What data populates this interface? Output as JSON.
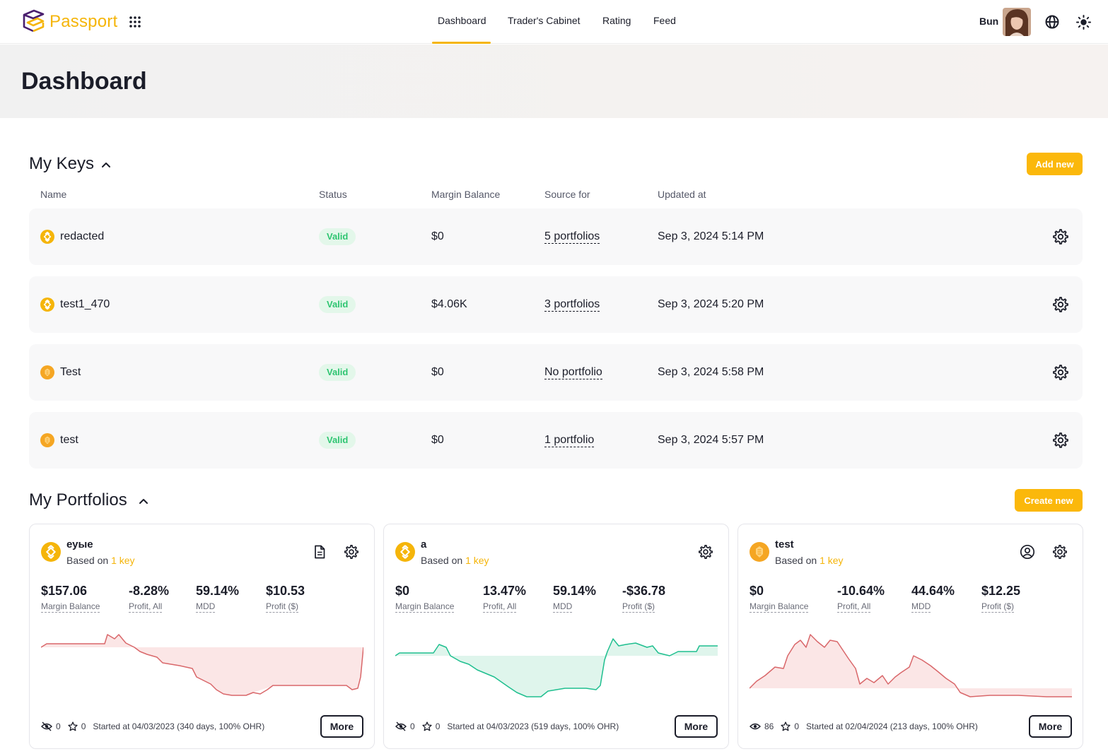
{
  "header": {
    "brand": "Passport",
    "nav": [
      {
        "label": "Dashboard",
        "active": true
      },
      {
        "label": "Trader's Cabinet",
        "active": false
      },
      {
        "label": "Rating",
        "active": false
      },
      {
        "label": "Feed",
        "active": false
      }
    ],
    "user_name": "Bun",
    "icons": [
      "apps-grid-icon",
      "globe-icon",
      "sun-icon"
    ]
  },
  "page": {
    "title": "Dashboard"
  },
  "colors": {
    "accent": "#fbb80b",
    "valid_text": "#2ec571",
    "valid_bg": "#e3f7ea",
    "loss": "#d9676a",
    "gain": "#1fbf8f"
  },
  "keys": {
    "title": "My Keys",
    "add_button": "Add new",
    "columns": [
      "Name",
      "Status",
      "Margin Balance",
      "Source for",
      "Updated at"
    ],
    "rows": [
      {
        "exchange_icon": "binance-icon",
        "name": "redacted",
        "status": "Valid",
        "margin": "$0",
        "source": "5 portfolios",
        "updated": "Sep 3, 2024 5:14 PM"
      },
      {
        "exchange_icon": "binance-icon",
        "name": "test1_470",
        "status": "Valid",
        "margin": "$4.06K",
        "source": "3 portfolios",
        "updated": "Sep 3, 2024 5:20 PM"
      },
      {
        "exchange_icon": "bybit-icon",
        "name": "Test",
        "status": "Valid",
        "margin": "$0",
        "source": "No portfolio",
        "updated": "Sep 3, 2024 5:58 PM"
      },
      {
        "exchange_icon": "bybit-icon",
        "name": "test",
        "status": "Valid",
        "margin": "$0",
        "source": "1 portfolio",
        "updated": "Sep 3, 2024 5:57 PM"
      }
    ]
  },
  "portfolios": {
    "title": "My Portfolios",
    "create_button": "Create new",
    "cards": [
      {
        "name": "еуые",
        "based_prefix": "Based on",
        "based_link": "1 key",
        "stats": [
          {
            "value": "$157.06",
            "label": "Margin Balance"
          },
          {
            "value": "-8.28%",
            "label": "Profit, All"
          },
          {
            "value": "59.14%",
            "label": "MDD"
          },
          {
            "value": "$10.53",
            "label": "Profit ($)"
          }
        ],
        "views": "0",
        "stars": "0",
        "started": "Started at 04/03/2023 (340 days, 100% OHR)",
        "more": "More"
      },
      {
        "name": "a",
        "based_prefix": "Based on",
        "based_link": "1 key",
        "stats": [
          {
            "value": "$0",
            "label": "Margin Balance"
          },
          {
            "value": "13.47%",
            "label": "Profit, All"
          },
          {
            "value": "59.14%",
            "label": "MDD"
          },
          {
            "value": "-$36.78",
            "label": "Profit ($)"
          }
        ],
        "views": "0",
        "stars": "0",
        "started": "Started at 04/03/2023 (519 days, 100% OHR)",
        "more": "More"
      },
      {
        "name": "test",
        "based_prefix": "Based on",
        "based_link": "1 key",
        "stats": [
          {
            "value": "$0",
            "label": "Margin Balance"
          },
          {
            "value": "-10.64%",
            "label": "Profit, All"
          },
          {
            "value": "44.64%",
            "label": "MDD"
          },
          {
            "value": "$12.25",
            "label": "Profit ($)"
          }
        ],
        "views": "86",
        "stars": "0",
        "started": "Started at 02/04/2024 (213 days, 100% OHR)",
        "more": "More"
      }
    ]
  }
}
